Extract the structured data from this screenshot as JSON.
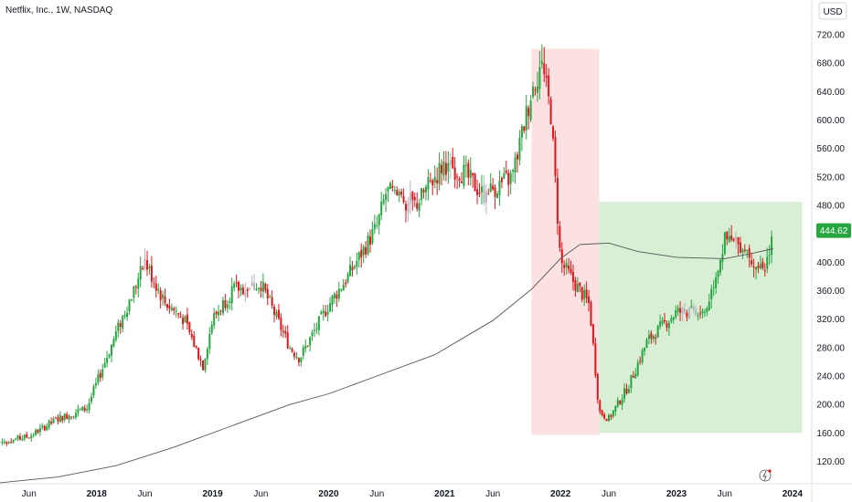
{
  "title": "Netflix, Inc., 1W, NASDAQ",
  "currency_button": "USD",
  "colors": {
    "up": "#26a641",
    "down": "#e0161c",
    "neutral": "#b2b5be",
    "ma": "#555555",
    "axis_text": "#131722",
    "red_zone": "#fbe1e1",
    "green_zone": "#d8efd6",
    "price_label_bg": "#26a641"
  },
  "chart_data": {
    "type": "candlestick",
    "title": "Netflix, Inc., 1W, NASDAQ",
    "xlabel": "",
    "ylabel": "",
    "y_axis_ticks": [
      120,
      160,
      200,
      240,
      280,
      320,
      360,
      400,
      440,
      480,
      520,
      560,
      600,
      640,
      680,
      720
    ],
    "ylim": [
      90,
      740
    ],
    "x_axis_ticks": [
      "Jun",
      "2018",
      "Jun",
      "2019",
      "Jun",
      "2020",
      "Jun",
      "2021",
      "Jun",
      "2022",
      "Jun",
      "2023",
      "Jun",
      "2024"
    ],
    "x_axis_tick_dates": [
      "2017-06",
      "2018-01",
      "2018-06",
      "2019-01",
      "2019-06",
      "2020-01",
      "2020-06",
      "2021-01",
      "2021-06",
      "2022-01",
      "2022-06",
      "2023-01",
      "2023-06",
      "2024-01"
    ],
    "x_range": [
      "2017-03",
      "2024-03"
    ],
    "last_price": "444.62",
    "moving_average_path": [
      {
        "date": "2017-03",
        "value": 90
      },
      {
        "date": "2017-09",
        "value": 98
      },
      {
        "date": "2018-03",
        "value": 114
      },
      {
        "date": "2018-09",
        "value": 140
      },
      {
        "date": "2019-03",
        "value": 170
      },
      {
        "date": "2019-09",
        "value": 200
      },
      {
        "date": "2020-01",
        "value": 215
      },
      {
        "date": "2020-06",
        "value": 240
      },
      {
        "date": "2020-12",
        "value": 270
      },
      {
        "date": "2021-06",
        "value": 318
      },
      {
        "date": "2021-10",
        "value": 362
      },
      {
        "date": "2022-01",
        "value": 405
      },
      {
        "date": "2022-03",
        "value": 425
      },
      {
        "date": "2022-06",
        "value": 427
      },
      {
        "date": "2022-09",
        "value": 415
      },
      {
        "date": "2023-01",
        "value": 407
      },
      {
        "date": "2023-06",
        "value": 405
      },
      {
        "date": "2023-09",
        "value": 413
      },
      {
        "date": "2023-11",
        "value": 419
      }
    ],
    "price_path": [
      {
        "date": "2017-03",
        "value": 147
      },
      {
        "date": "2017-06",
        "value": 155
      },
      {
        "date": "2017-09",
        "value": 180
      },
      {
        "date": "2017-12",
        "value": 195
      },
      {
        "date": "2018-03",
        "value": 300
      },
      {
        "date": "2018-06",
        "value": 400
      },
      {
        "date": "2018-08",
        "value": 345
      },
      {
        "date": "2018-10",
        "value": 320
      },
      {
        "date": "2018-12",
        "value": 255
      },
      {
        "date": "2019-01",
        "value": 320
      },
      {
        "date": "2019-03",
        "value": 360
      },
      {
        "date": "2019-06",
        "value": 370
      },
      {
        "date": "2019-09",
        "value": 280
      },
      {
        "date": "2019-10",
        "value": 265
      },
      {
        "date": "2020-01",
        "value": 340
      },
      {
        "date": "2020-03",
        "value": 380
      },
      {
        "date": "2020-06",
        "value": 450
      },
      {
        "date": "2020-07",
        "value": 500
      },
      {
        "date": "2020-10",
        "value": 480
      },
      {
        "date": "2021-01",
        "value": 540
      },
      {
        "date": "2021-03",
        "value": 525
      },
      {
        "date": "2021-05",
        "value": 495
      },
      {
        "date": "2021-08",
        "value": 520
      },
      {
        "date": "2021-10",
        "value": 640
      },
      {
        "date": "2021-11",
        "value": 680
      },
      {
        "date": "2021-12",
        "value": 610
      },
      {
        "date": "2022-01",
        "value": 400
      },
      {
        "date": "2022-04",
        "value": 340
      },
      {
        "date": "2022-05",
        "value": 190
      },
      {
        "date": "2022-06",
        "value": 180
      },
      {
        "date": "2022-08",
        "value": 225
      },
      {
        "date": "2022-10",
        "value": 290
      },
      {
        "date": "2023-01",
        "value": 330
      },
      {
        "date": "2023-04",
        "value": 330
      },
      {
        "date": "2023-06",
        "value": 430
      },
      {
        "date": "2023-08",
        "value": 425
      },
      {
        "date": "2023-10",
        "value": 380
      },
      {
        "date": "2023-11",
        "value": 445
      }
    ],
    "zones": [
      {
        "color": "red",
        "from": "2021-10",
        "to": "2022-05",
        "top": 700,
        "bottom": 157
      },
      {
        "color": "green",
        "from": "2022-05",
        "to": "2024-02",
        "top": 485,
        "bottom": 160
      }
    ]
  }
}
